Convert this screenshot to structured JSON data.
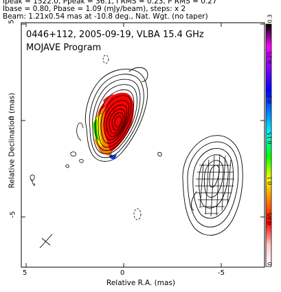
{
  "header": {
    "line1": "Ipeak = 1522.0, Ppeak = 36.1, I RMS = 0.23, P RMS = 0.27",
    "line2": "Ibase = 0.80, Pbase = 1.09 (mJy/beam), steps: x 2",
    "line3": "Beam: 1.21x0.54 mas at -10.8 deg., Nat. Wgt. (no taper)"
  },
  "plot": {
    "title": "0446+112, 2005-09-19, VLBA 15.4 GHz",
    "subtitle": "MOJAVE Program",
    "xlabel": "Relative R.A. (mas)",
    "ylabel": "Relative Declination (mas)"
  },
  "chart_data": {
    "type": "heatmap",
    "x_ticks": [
      "5",
      "0",
      "-5"
    ],
    "y_ticks": [
      "5",
      "0",
      "-5"
    ],
    "xlim": [
      5.6,
      -7.9
    ],
    "ylim": [
      -7.6,
      5.0
    ],
    "colorbar": {
      "ticks": [
        "0",
        "0.05",
        "0.1",
        "0.15",
        "0.2",
        "0.25",
        "0.3"
      ],
      "range": [
        0,
        0.3
      ],
      "colors": [
        "#ffffff",
        "#ffc8c8",
        "#ff0000",
        "#ff8000",
        "#ffff00",
        "#00ff00",
        "#00ffff",
        "#0080ff",
        "#0000ff",
        "#8000ff",
        "#ff00ff",
        "#000000"
      ]
    }
  }
}
